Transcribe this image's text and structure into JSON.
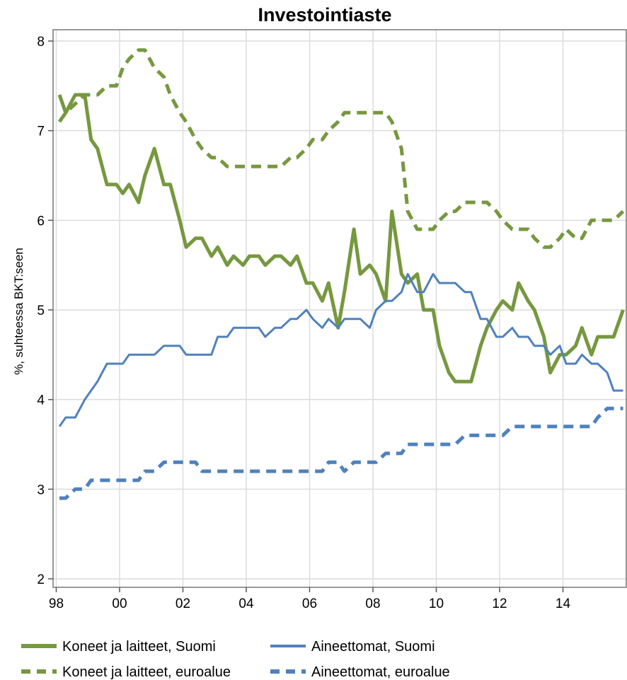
{
  "chart_data": {
    "type": "line",
    "title": "Investointiaste",
    "ylabel": "%, suhteessa BKT:seen",
    "xlabel": "",
    "ylim": [
      2,
      8
    ],
    "yticks": [
      2,
      3,
      4,
      5,
      6,
      7,
      8
    ],
    "xlim": [
      1997.9,
      2016.0
    ],
    "xticks": [
      {
        "value": 1998,
        "label": "98"
      },
      {
        "value": 2000,
        "label": "00"
      },
      {
        "value": 2002,
        "label": "02"
      },
      {
        "value": 2004,
        "label": "04"
      },
      {
        "value": 2006,
        "label": "06"
      },
      {
        "value": 2008,
        "label": "08"
      },
      {
        "value": 2010,
        "label": "10"
      },
      {
        "value": 2012,
        "label": "12"
      },
      {
        "value": 2014,
        "label": "14"
      }
    ],
    "grid": true,
    "legend_position": "bottom",
    "series": [
      {
        "name": "Koneet ja laitteet, Suomi",
        "color": "#76983f",
        "style": "solid",
        "width": "thick",
        "x": [
          1998.1,
          1998.3,
          1998.6,
          1998.9,
          1999.1,
          1999.3,
          1999.6,
          1999.9,
          2000.1,
          2000.3,
          2000.6,
          2000.8,
          2001.1,
          2001.4,
          2001.6,
          2001.9,
          2002.1,
          2002.4,
          2002.6,
          2002.9,
          2003.1,
          2003.4,
          2003.6,
          2003.9,
          2004.1,
          2004.4,
          2004.6,
          2004.9,
          2005.1,
          2005.4,
          2005.6,
          2005.9,
          2006.1,
          2006.4,
          2006.6,
          2006.9,
          2007.1,
          2007.4,
          2007.6,
          2007.9,
          2008.1,
          2008.4,
          2008.6,
          2008.9,
          2009.1,
          2009.4,
          2009.6,
          2009.9,
          2010.1,
          2010.4,
          2010.6,
          2010.9,
          2011.1,
          2011.4,
          2011.6,
          2011.9,
          2012.1,
          2012.4,
          2012.6,
          2012.9,
          2013.1,
          2013.4,
          2013.6,
          2013.9,
          2014.1,
          2014.4,
          2014.6,
          2014.9,
          2015.1,
          2015.4,
          2015.6,
          2015.9
        ],
        "values": [
          7.4,
          7.2,
          7.4,
          7.4,
          6.9,
          6.8,
          6.4,
          6.4,
          6.3,
          6.4,
          6.2,
          6.5,
          6.8,
          6.4,
          6.4,
          6.0,
          5.7,
          5.8,
          5.8,
          5.6,
          5.7,
          5.5,
          5.6,
          5.5,
          5.6,
          5.6,
          5.5,
          5.6,
          5.6,
          5.5,
          5.6,
          5.3,
          5.3,
          5.1,
          5.3,
          4.8,
          5.2,
          5.9,
          5.4,
          5.5,
          5.4,
          5.1,
          6.1,
          5.4,
          5.3,
          5.4,
          5.0,
          5.0,
          4.6,
          4.3,
          4.2,
          4.2,
          4.2,
          4.6,
          4.8,
          5.0,
          5.1,
          5.0,
          5.3,
          5.1,
          5.0,
          4.7,
          4.3,
          4.5,
          4.5,
          4.6,
          4.8,
          4.5,
          4.7,
          4.7,
          4.7,
          5.0
        ]
      },
      {
        "name": "Aineettomat, Suomi",
        "color": "#4f81bd",
        "style": "solid",
        "width": "thin",
        "x": [
          1998.1,
          1998.3,
          1998.6,
          1998.9,
          1999.1,
          1999.3,
          1999.6,
          1999.9,
          2000.1,
          2000.3,
          2000.6,
          2000.8,
          2001.1,
          2001.4,
          2001.6,
          2001.9,
          2002.1,
          2002.4,
          2002.6,
          2002.9,
          2003.1,
          2003.4,
          2003.6,
          2003.9,
          2004.1,
          2004.4,
          2004.6,
          2004.9,
          2005.1,
          2005.4,
          2005.6,
          2005.9,
          2006.1,
          2006.4,
          2006.6,
          2006.9,
          2007.1,
          2007.4,
          2007.6,
          2007.9,
          2008.1,
          2008.4,
          2008.6,
          2008.9,
          2009.1,
          2009.4,
          2009.6,
          2009.9,
          2010.1,
          2010.4,
          2010.6,
          2010.9,
          2011.1,
          2011.4,
          2011.6,
          2011.9,
          2012.1,
          2012.4,
          2012.6,
          2012.9,
          2013.1,
          2013.4,
          2013.6,
          2013.9,
          2014.1,
          2014.4,
          2014.6,
          2014.9,
          2015.1,
          2015.4,
          2015.6,
          2015.9
        ],
        "values": [
          3.7,
          3.8,
          3.8,
          4.0,
          4.1,
          4.2,
          4.4,
          4.4,
          4.4,
          4.5,
          4.5,
          4.5,
          4.5,
          4.6,
          4.6,
          4.6,
          4.5,
          4.5,
          4.5,
          4.5,
          4.7,
          4.7,
          4.8,
          4.8,
          4.8,
          4.8,
          4.7,
          4.8,
          4.8,
          4.9,
          4.9,
          5.0,
          4.9,
          4.8,
          4.9,
          4.8,
          4.9,
          4.9,
          4.9,
          4.8,
          5.0,
          5.1,
          5.1,
          5.2,
          5.4,
          5.2,
          5.2,
          5.4,
          5.3,
          5.3,
          5.3,
          5.2,
          5.2,
          4.9,
          4.9,
          4.7,
          4.7,
          4.8,
          4.7,
          4.7,
          4.6,
          4.6,
          4.5,
          4.6,
          4.4,
          4.4,
          4.5,
          4.4,
          4.4,
          4.3,
          4.1,
          4.1
        ]
      },
      {
        "name": "Koneet ja laitteet, euroalue",
        "color": "#76983f",
        "style": "dashed",
        "width": "thick",
        "x": [
          1998.1,
          1998.3,
          1998.6,
          1998.9,
          1999.1,
          1999.3,
          1999.6,
          1999.9,
          2000.1,
          2000.3,
          2000.6,
          2000.8,
          2001.1,
          2001.4,
          2001.6,
          2001.9,
          2002.1,
          2002.4,
          2002.6,
          2002.9,
          2003.1,
          2003.4,
          2003.6,
          2003.9,
          2004.1,
          2004.4,
          2004.6,
          2004.9,
          2005.1,
          2005.4,
          2005.6,
          2005.9,
          2006.1,
          2006.4,
          2006.6,
          2006.9,
          2007.1,
          2007.4,
          2007.6,
          2007.9,
          2008.1,
          2008.4,
          2008.6,
          2008.9,
          2009.1,
          2009.4,
          2009.6,
          2009.9,
          2010.1,
          2010.4,
          2010.6,
          2010.9,
          2011.1,
          2011.4,
          2011.6,
          2011.9,
          2012.1,
          2012.4,
          2012.6,
          2012.9,
          2013.1,
          2013.4,
          2013.6,
          2013.9,
          2014.1,
          2014.4,
          2014.6,
          2014.9,
          2015.1,
          2015.4,
          2015.6,
          2015.9
        ],
        "values": [
          7.1,
          7.2,
          7.3,
          7.4,
          7.4,
          7.4,
          7.5,
          7.5,
          7.7,
          7.8,
          7.9,
          7.9,
          7.7,
          7.6,
          7.4,
          7.2,
          7.1,
          6.9,
          6.8,
          6.7,
          6.7,
          6.6,
          6.6,
          6.6,
          6.6,
          6.6,
          6.6,
          6.6,
          6.6,
          6.7,
          6.7,
          6.8,
          6.9,
          6.9,
          7.0,
          7.1,
          7.2,
          7.2,
          7.2,
          7.2,
          7.2,
          7.2,
          7.1,
          6.8,
          6.1,
          5.9,
          5.9,
          5.9,
          6.0,
          6.1,
          6.1,
          6.2,
          6.2,
          6.2,
          6.2,
          6.1,
          6.0,
          5.9,
          5.9,
          5.9,
          5.8,
          5.7,
          5.7,
          5.8,
          5.9,
          5.8,
          5.8,
          6.0,
          6.0,
          6.0,
          6.0,
          6.1
        ]
      },
      {
        "name": "Aineettomat, euroalue",
        "color": "#4f81bd",
        "style": "dashed",
        "width": "thick",
        "x": [
          1998.1,
          1998.3,
          1998.6,
          1998.9,
          1999.1,
          1999.3,
          1999.6,
          1999.9,
          2000.1,
          2000.3,
          2000.6,
          2000.8,
          2001.1,
          2001.4,
          2001.6,
          2001.9,
          2002.1,
          2002.4,
          2002.6,
          2002.9,
          2003.1,
          2003.4,
          2003.6,
          2003.9,
          2004.1,
          2004.4,
          2004.6,
          2004.9,
          2005.1,
          2005.4,
          2005.6,
          2005.9,
          2006.1,
          2006.4,
          2006.6,
          2006.9,
          2007.1,
          2007.4,
          2007.6,
          2007.9,
          2008.1,
          2008.4,
          2008.6,
          2008.9,
          2009.1,
          2009.4,
          2009.6,
          2009.9,
          2010.1,
          2010.4,
          2010.6,
          2010.9,
          2011.1,
          2011.4,
          2011.6,
          2011.9,
          2012.1,
          2012.4,
          2012.6,
          2012.9,
          2013.1,
          2013.4,
          2013.6,
          2013.9,
          2014.1,
          2014.4,
          2014.6,
          2014.9,
          2015.1,
          2015.4,
          2015.6,
          2015.9
        ],
        "values": [
          2.9,
          2.9,
          3.0,
          3.0,
          3.1,
          3.1,
          3.1,
          3.1,
          3.1,
          3.1,
          3.1,
          3.2,
          3.2,
          3.3,
          3.3,
          3.3,
          3.3,
          3.3,
          3.2,
          3.2,
          3.2,
          3.2,
          3.2,
          3.2,
          3.2,
          3.2,
          3.2,
          3.2,
          3.2,
          3.2,
          3.2,
          3.2,
          3.2,
          3.2,
          3.3,
          3.3,
          3.2,
          3.3,
          3.3,
          3.3,
          3.3,
          3.4,
          3.4,
          3.4,
          3.5,
          3.5,
          3.5,
          3.5,
          3.5,
          3.5,
          3.5,
          3.6,
          3.6,
          3.6,
          3.6,
          3.6,
          3.6,
          3.7,
          3.7,
          3.7,
          3.7,
          3.7,
          3.7,
          3.7,
          3.7,
          3.7,
          3.7,
          3.7,
          3.8,
          3.9,
          3.9,
          3.9
        ]
      }
    ]
  }
}
